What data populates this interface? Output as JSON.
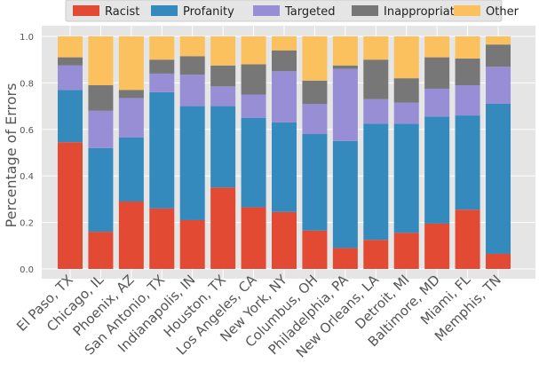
{
  "chart_data": {
    "type": "bar",
    "stacked": true,
    "title": "",
    "xlabel": "",
    "ylabel": "Percentage of Errors",
    "ylim": [
      0,
      1.0
    ],
    "yticks": [
      "0.0",
      "0.2",
      "0.4",
      "0.6",
      "0.8",
      "1.0"
    ],
    "grid": true,
    "legend_position": "top",
    "categories": [
      "El Paso, TX",
      "Chicago, IL",
      "Phoenix, AZ",
      "San Antonio, TX",
      "Indianapolis, IN",
      "Houston, TX",
      "Los Angeles, CA",
      "New York, NY",
      "Columbus, OH",
      "Philadelphia, PA",
      "New Orleans, LA",
      "Detroit, MI",
      "Baltimore, MD",
      "Miami, FL",
      "Memphis, TN"
    ],
    "series": [
      {
        "name": "Racist",
        "color": "#e24a33",
        "values": [
          0.545,
          0.16,
          0.29,
          0.26,
          0.21,
          0.35,
          0.265,
          0.245,
          0.165,
          0.09,
          0.125,
          0.155,
          0.195,
          0.255,
          0.065
        ]
      },
      {
        "name": "Profanity",
        "color": "#348abd",
        "values": [
          0.225,
          0.36,
          0.275,
          0.5,
          0.49,
          0.35,
          0.385,
          0.385,
          0.415,
          0.46,
          0.5,
          0.47,
          0.46,
          0.405,
          0.645
        ]
      },
      {
        "name": "Targeted",
        "color": "#988ed5",
        "values": [
          0.105,
          0.16,
          0.17,
          0.08,
          0.135,
          0.085,
          0.1,
          0.22,
          0.13,
          0.31,
          0.105,
          0.09,
          0.12,
          0.13,
          0.16
        ]
      },
      {
        "name": "Inappropriate",
        "color": "#777777",
        "values": [
          0.035,
          0.11,
          0.035,
          0.06,
          0.08,
          0.09,
          0.13,
          0.09,
          0.1,
          0.015,
          0.17,
          0.105,
          0.135,
          0.115,
          0.095
        ]
      },
      {
        "name": "Other",
        "color": "#fbc15e",
        "values": [
          0.09,
          0.21,
          0.23,
          0.1,
          0.085,
          0.125,
          0.12,
          0.06,
          0.19,
          0.125,
          0.1,
          0.18,
          0.09,
          0.095,
          0.035
        ]
      }
    ]
  }
}
